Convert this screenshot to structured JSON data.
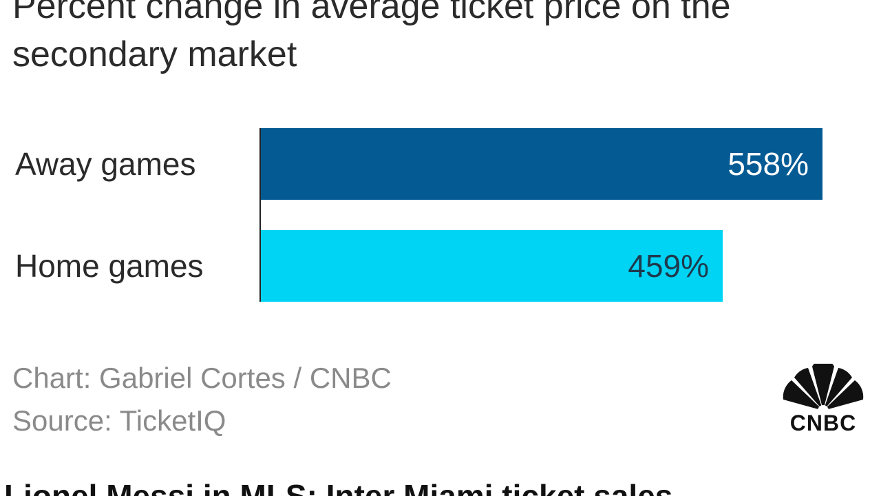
{
  "title": "Percent change in average ticket price on the secondary market",
  "chart_data": {
    "type": "bar",
    "orientation": "horizontal",
    "categories": [
      "Away games",
      "Home games"
    ],
    "values": [
      558,
      459
    ],
    "value_labels": [
      "558%",
      "459%"
    ],
    "xlim": [
      0,
      558
    ],
    "grid": false,
    "legend": "none",
    "colors": [
      "#045b94",
      "#00d4f5"
    ],
    "label_colors": [
      "#ffffff",
      "#1e3a4d"
    ]
  },
  "credits": {
    "chart": "Chart: Gabriel Cortes / CNBC",
    "source": "Source: TicketIQ"
  },
  "logo": {
    "text": "CNBC",
    "icon": "peacock-logo-icon"
  },
  "headline": "Lionel Messi in MLS: Inter Miami ticket sales"
}
